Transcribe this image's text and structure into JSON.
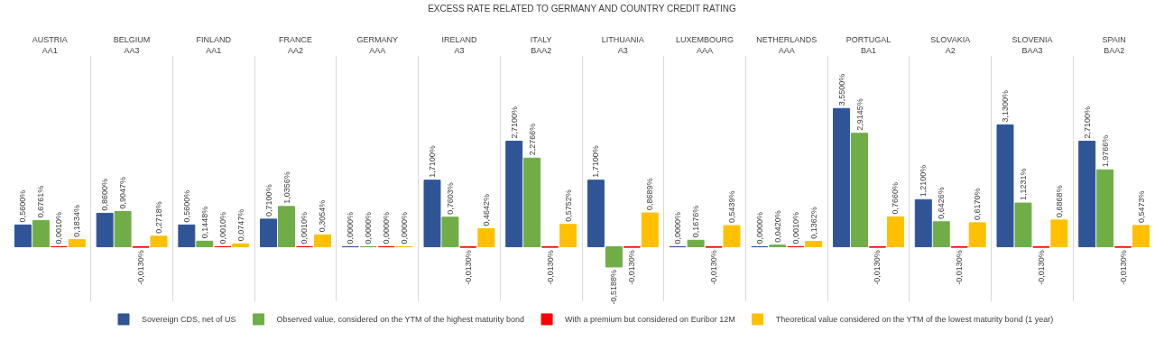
{
  "chart_data": {
    "type": "bar",
    "title": "EXCESS RATE RELATED TO GERMANY AND COUNTRY CREDIT RATING",
    "categories": [
      "AUSTRIA\nAA1",
      "BELGIUM\nAA3",
      "FINLAND\nAA1",
      "FRANCE\nAA2",
      "GERMANY\nAAA",
      "IRELAND\nA3",
      "ITALY\nBAA2",
      "LITHUANIA\nA3",
      "LUXEMBOURG\nAAA",
      "NETHERLANDS\nAAA",
      "PORTUGAL\nBA1",
      "SLOVAKIA\nA2",
      "SLOVENIA\nBAA3",
      "SPAIN\nBAA2"
    ],
    "series": [
      {
        "name": "Sovereign CDS, net of US",
        "color": "#2f5597",
        "values": [
          0.56,
          0.86,
          0.56,
          0.71,
          0,
          1.71,
          2.71,
          1.71,
          0,
          0,
          3.55,
          1.21,
          3.13,
          2.71
        ],
        "value_labels": [
          "0,5600%",
          "0,8600%",
          "0,5600%",
          "0,7100%",
          "0,0000%",
          "1,7100%",
          "2,7100%",
          "1,7100%",
          "0,0000%",
          "0,0000%",
          "3,5500%",
          "1,2100%",
          "3,1300%",
          "2,7100%"
        ]
      },
      {
        "name": "Observed value, considered on the YTM of the highest maturity bond",
        "color": "#70ad47",
        "values": [
          0.6761,
          0.9047,
          0.1448,
          1.0356,
          0,
          0.7603,
          2.2766,
          -0.5188,
          0.1676,
          0.042,
          2.9145,
          0.6426,
          1.1231,
          1.9766
        ],
        "value_labels": [
          "0,6761%",
          "0,9047%",
          "0,1448%",
          "1,0356%",
          "0,0000%",
          "0,7603%",
          "2,2766%",
          "-0,5188%",
          "0,1676%",
          "0,0420%",
          "2,9145%",
          "0,6426%",
          "1,1231%",
          "1,9766%"
        ]
      },
      {
        "name": "With a premium but considered on Euribor 12M",
        "color": "#ff0000",
        "values": [
          0.001,
          -0.013,
          0.001,
          0.001,
          0,
          -0.013,
          -0.013,
          -0.013,
          -0.013,
          0.001,
          -0.013,
          -0.013,
          -0.013,
          -0.013
        ],
        "value_labels": [
          "0,0010%",
          "-0,0130%",
          "0,0010%",
          "0,0010%",
          "0,0000%",
          "-0,0130%",
          "-0,0130%",
          "-0,0130%",
          "-0,0130%",
          "0,0010%",
          "-0,0130%",
          "-0,0130%",
          "-0,0130%",
          "-0,0130%"
        ]
      },
      {
        "name": "Theoretical value considered on the YTM of the lowest maturity bond (1 year)",
        "color": "#ffc000",
        "values": [
          0.1834,
          0.2718,
          0.0747,
          0.3054,
          0,
          0.4642,
          0.5752,
          0.8689,
          0.5439,
          0.1362,
          0.766,
          0.617,
          0.6868,
          0.5473
        ],
        "value_labels": [
          "0,1834%",
          "0,2718%",
          "0,0747%",
          "0,3054%",
          "0,0000%",
          "0,4642%",
          "0,5752%",
          "0,8689%",
          "0,5439%",
          "0,1362%",
          "0,7660%",
          "0,6170%",
          "0,6868%",
          "0,5473%"
        ]
      }
    ],
    "ylim": [
      -1.4,
      4.9
    ],
    "grid": "x",
    "legend": "bottom",
    "tick_labels": "x"
  }
}
